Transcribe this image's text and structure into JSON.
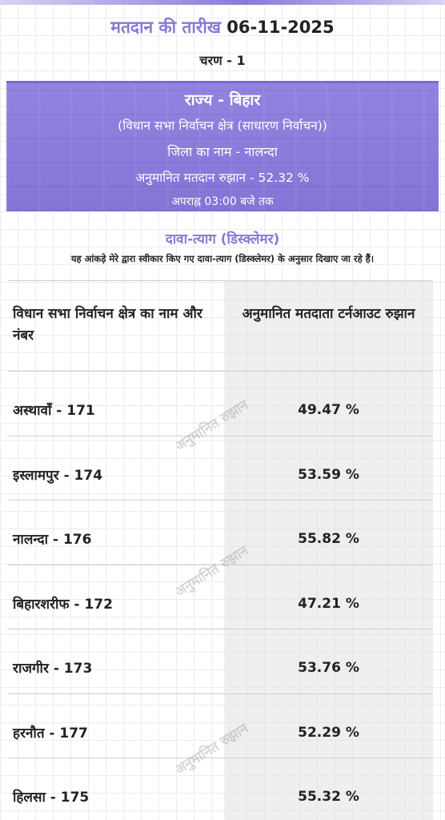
{
  "header": {
    "date_label": "मतदान की तारीख",
    "date_value": "06-11-2025",
    "phase": "चरण - 1"
  },
  "banner": {
    "state": "राज्य - बिहार",
    "election_type": "(विधान सभा निर्वाचन क्षेत्र (साधारण निर्वाचन))",
    "district": "जिला का नाम - नालन्दा",
    "turnout": "अनुमानित मतदान रुझान - 52.32 %",
    "time": "अपराह्न 03:00 बजे तक"
  },
  "disclaimer": {
    "title": "दावा-त्याग (डिस्क्लेमर)",
    "text": "यह आंकड़े मेरे द्वारा स्वीकार किए गए दावा-त्याग (डिस्क्लेमर) के अनुसार दिखाए जा रहे हैं।"
  },
  "table": {
    "headers": {
      "left": "विधान सभा निर्वाचन क्षेत्र का नाम और नंबर",
      "right": "अनुमानित मतदाता टर्नआउट रुझान"
    },
    "rows": [
      {
        "name": "अस्थावाँ - 171",
        "turnout": "49.47 %"
      },
      {
        "name": "इस्लामपुर - 174",
        "turnout": "53.59 %"
      },
      {
        "name": "नालन्दा - 176",
        "turnout": "55.82 %"
      },
      {
        "name": "बिहारशरीफ - 172",
        "turnout": "47.21 %"
      },
      {
        "name": "राजगीर - 173",
        "turnout": "53.76 %"
      },
      {
        "name": "हरनौत - 177",
        "turnout": "52.29 %"
      },
      {
        "name": "हिलसा - 175",
        "turnout": "55.32 %"
      }
    ]
  },
  "watermark": "अनुमानित रुझान",
  "colors": {
    "accent": "#8a77d6",
    "banner": "#8c7cdc",
    "grid": "#ececf0"
  }
}
